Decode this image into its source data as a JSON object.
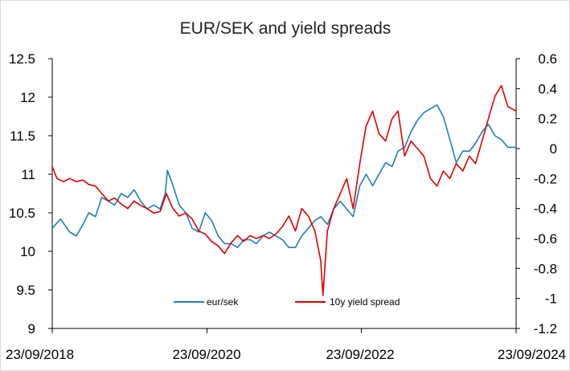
{
  "chart_data": {
    "type": "line",
    "title": "EUR/SEK and yield spreads",
    "x_tick_labels": [
      "23/09/2018",
      "23/09/2020",
      "23/09/2022",
      "23/09/2024"
    ],
    "x_range": [
      "2018-09-23",
      "2024-09-23"
    ],
    "y_left": {
      "ylim": [
        9,
        12.5
      ],
      "ticks": [
        "9",
        "9.5",
        "10",
        "10.5",
        "11",
        "11.5",
        "12",
        "12.5"
      ]
    },
    "y_right": {
      "ylim": [
        -1.2,
        0.6
      ],
      "ticks": [
        "-1.2",
        "-1",
        "-0.8",
        "-0.6",
        "-0.4",
        "-0.2",
        "0",
        "0.2",
        "0.4",
        "0.6"
      ]
    },
    "grid": false,
    "legend_position": "bottom-center inside plot",
    "series": [
      {
        "name": "eur/sek",
        "axis": "left",
        "color": "#1f7fb4",
        "points": [
          [
            "2018-09-23",
            10.3
          ],
          [
            "2018-11-01",
            10.42
          ],
          [
            "2018-12-15",
            10.25
          ],
          [
            "2019-01-15",
            10.2
          ],
          [
            "2019-02-15",
            10.35
          ],
          [
            "2019-03-15",
            10.5
          ],
          [
            "2019-04-15",
            10.45
          ],
          [
            "2019-05-15",
            10.7
          ],
          [
            "2019-06-15",
            10.65
          ],
          [
            "2019-07-15",
            10.6
          ],
          [
            "2019-08-15",
            10.75
          ],
          [
            "2019-09-15",
            10.7
          ],
          [
            "2019-10-15",
            10.8
          ],
          [
            "2019-11-15",
            10.65
          ],
          [
            "2019-12-15",
            10.55
          ],
          [
            "2020-01-15",
            10.6
          ],
          [
            "2020-02-15",
            10.55
          ],
          [
            "2020-03-10",
            10.75
          ],
          [
            "2020-03-20",
            11.05
          ],
          [
            "2020-04-10",
            10.9
          ],
          [
            "2020-05-15",
            10.6
          ],
          [
            "2020-06-15",
            10.5
          ],
          [
            "2020-07-15",
            10.3
          ],
          [
            "2020-08-15",
            10.25
          ],
          [
            "2020-09-15",
            10.5
          ],
          [
            "2020-10-15",
            10.4
          ],
          [
            "2020-11-15",
            10.2
          ],
          [
            "2020-12-15",
            10.1
          ],
          [
            "2021-01-15",
            10.1
          ],
          [
            "2021-02-15",
            10.05
          ],
          [
            "2021-03-15",
            10.15
          ],
          [
            "2021-04-15",
            10.15
          ],
          [
            "2021-05-15",
            10.1
          ],
          [
            "2021-06-15",
            10.2
          ],
          [
            "2021-07-15",
            10.25
          ],
          [
            "2021-08-15",
            10.2
          ],
          [
            "2021-09-15",
            10.15
          ],
          [
            "2021-10-15",
            10.05
          ],
          [
            "2021-11-15",
            10.05
          ],
          [
            "2021-12-15",
            10.2
          ],
          [
            "2022-01-15",
            10.3
          ],
          [
            "2022-02-15",
            10.4
          ],
          [
            "2022-03-15",
            10.45
          ],
          [
            "2022-04-15",
            10.35
          ],
          [
            "2022-05-15",
            10.55
          ],
          [
            "2022-06-15",
            10.65
          ],
          [
            "2022-07-15",
            10.55
          ],
          [
            "2022-08-15",
            10.45
          ],
          [
            "2022-09-15",
            10.85
          ],
          [
            "2022-10-15",
            11.0
          ],
          [
            "2022-11-15",
            10.85
          ],
          [
            "2022-12-15",
            11.0
          ],
          [
            "2023-01-15",
            11.15
          ],
          [
            "2023-02-15",
            11.1
          ],
          [
            "2023-03-15",
            11.3
          ],
          [
            "2023-04-15",
            11.35
          ],
          [
            "2023-05-15",
            11.55
          ],
          [
            "2023-06-15",
            11.7
          ],
          [
            "2023-07-15",
            11.8
          ],
          [
            "2023-08-15",
            11.85
          ],
          [
            "2023-09-15",
            11.9
          ],
          [
            "2023-10-15",
            11.75
          ],
          [
            "2023-11-15",
            11.45
          ],
          [
            "2023-12-15",
            11.15
          ],
          [
            "2024-01-15",
            11.3
          ],
          [
            "2024-02-15",
            11.3
          ],
          [
            "2024-03-15",
            11.4
          ],
          [
            "2024-04-15",
            11.55
          ],
          [
            "2024-05-15",
            11.65
          ],
          [
            "2024-06-15",
            11.5
          ],
          [
            "2024-07-15",
            11.45
          ],
          [
            "2024-08-15",
            11.35
          ],
          [
            "2024-09-23",
            11.35
          ]
        ]
      },
      {
        "name": "10y yield spread",
        "axis": "right",
        "color": "#e00000",
        "points": [
          [
            "2018-09-23",
            -0.12
          ],
          [
            "2018-10-15",
            -0.2
          ],
          [
            "2018-11-15",
            -0.22
          ],
          [
            "2018-12-15",
            -0.2
          ],
          [
            "2019-01-15",
            -0.22
          ],
          [
            "2019-02-15",
            -0.21
          ],
          [
            "2019-03-15",
            -0.24
          ],
          [
            "2019-04-15",
            -0.25
          ],
          [
            "2019-05-15",
            -0.3
          ],
          [
            "2019-06-15",
            -0.35
          ],
          [
            "2019-07-15",
            -0.33
          ],
          [
            "2019-08-15",
            -0.37
          ],
          [
            "2019-09-15",
            -0.4
          ],
          [
            "2019-10-15",
            -0.35
          ],
          [
            "2019-11-15",
            -0.38
          ],
          [
            "2019-12-15",
            -0.4
          ],
          [
            "2020-01-15",
            -0.43
          ],
          [
            "2020-02-15",
            -0.42
          ],
          [
            "2020-03-15",
            -0.3
          ],
          [
            "2020-04-15",
            -0.4
          ],
          [
            "2020-05-15",
            -0.45
          ],
          [
            "2020-06-15",
            -0.43
          ],
          [
            "2020-07-15",
            -0.47
          ],
          [
            "2020-08-15",
            -0.55
          ],
          [
            "2020-09-15",
            -0.57
          ],
          [
            "2020-10-15",
            -0.62
          ],
          [
            "2020-11-15",
            -0.65
          ],
          [
            "2020-12-15",
            -0.7
          ],
          [
            "2021-01-15",
            -0.63
          ],
          [
            "2021-02-15",
            -0.58
          ],
          [
            "2021-03-15",
            -0.62
          ],
          [
            "2021-04-15",
            -0.58
          ],
          [
            "2021-05-15",
            -0.6
          ],
          [
            "2021-06-15",
            -0.58
          ],
          [
            "2021-07-15",
            -0.6
          ],
          [
            "2021-08-15",
            -0.57
          ],
          [
            "2021-09-15",
            -0.52
          ],
          [
            "2021-10-15",
            -0.45
          ],
          [
            "2021-11-15",
            -0.55
          ],
          [
            "2021-12-15",
            -0.4
          ],
          [
            "2022-01-15",
            -0.45
          ],
          [
            "2022-02-15",
            -0.55
          ],
          [
            "2022-03-15",
            -0.75
          ],
          [
            "2022-03-25",
            -0.98
          ],
          [
            "2022-04-15",
            -0.55
          ],
          [
            "2022-05-15",
            -0.4
          ],
          [
            "2022-06-15",
            -0.3
          ],
          [
            "2022-07-15",
            -0.2
          ],
          [
            "2022-08-15",
            -0.4
          ],
          [
            "2022-09-15",
            -0.1
          ],
          [
            "2022-10-15",
            0.15
          ],
          [
            "2022-11-15",
            0.25
          ],
          [
            "2022-12-15",
            0.1
          ],
          [
            "2023-01-15",
            0.05
          ],
          [
            "2023-02-15",
            0.2
          ],
          [
            "2023-03-15",
            0.25
          ],
          [
            "2023-04-15",
            -0.05
          ],
          [
            "2023-05-15",
            0.05
          ],
          [
            "2023-06-15",
            0.0
          ],
          [
            "2023-07-15",
            -0.05
          ],
          [
            "2023-08-15",
            -0.2
          ],
          [
            "2023-09-15",
            -0.25
          ],
          [
            "2023-10-15",
            -0.15
          ],
          [
            "2023-11-15",
            -0.2
          ],
          [
            "2023-12-15",
            -0.1
          ],
          [
            "2024-01-15",
            -0.15
          ],
          [
            "2024-02-15",
            -0.05
          ],
          [
            "2024-03-15",
            -0.1
          ],
          [
            "2024-04-15",
            0.05
          ],
          [
            "2024-05-15",
            0.2
          ],
          [
            "2024-06-15",
            0.35
          ],
          [
            "2024-07-15",
            0.42
          ],
          [
            "2024-08-15",
            0.28
          ],
          [
            "2024-09-23",
            0.25
          ]
        ]
      }
    ]
  }
}
